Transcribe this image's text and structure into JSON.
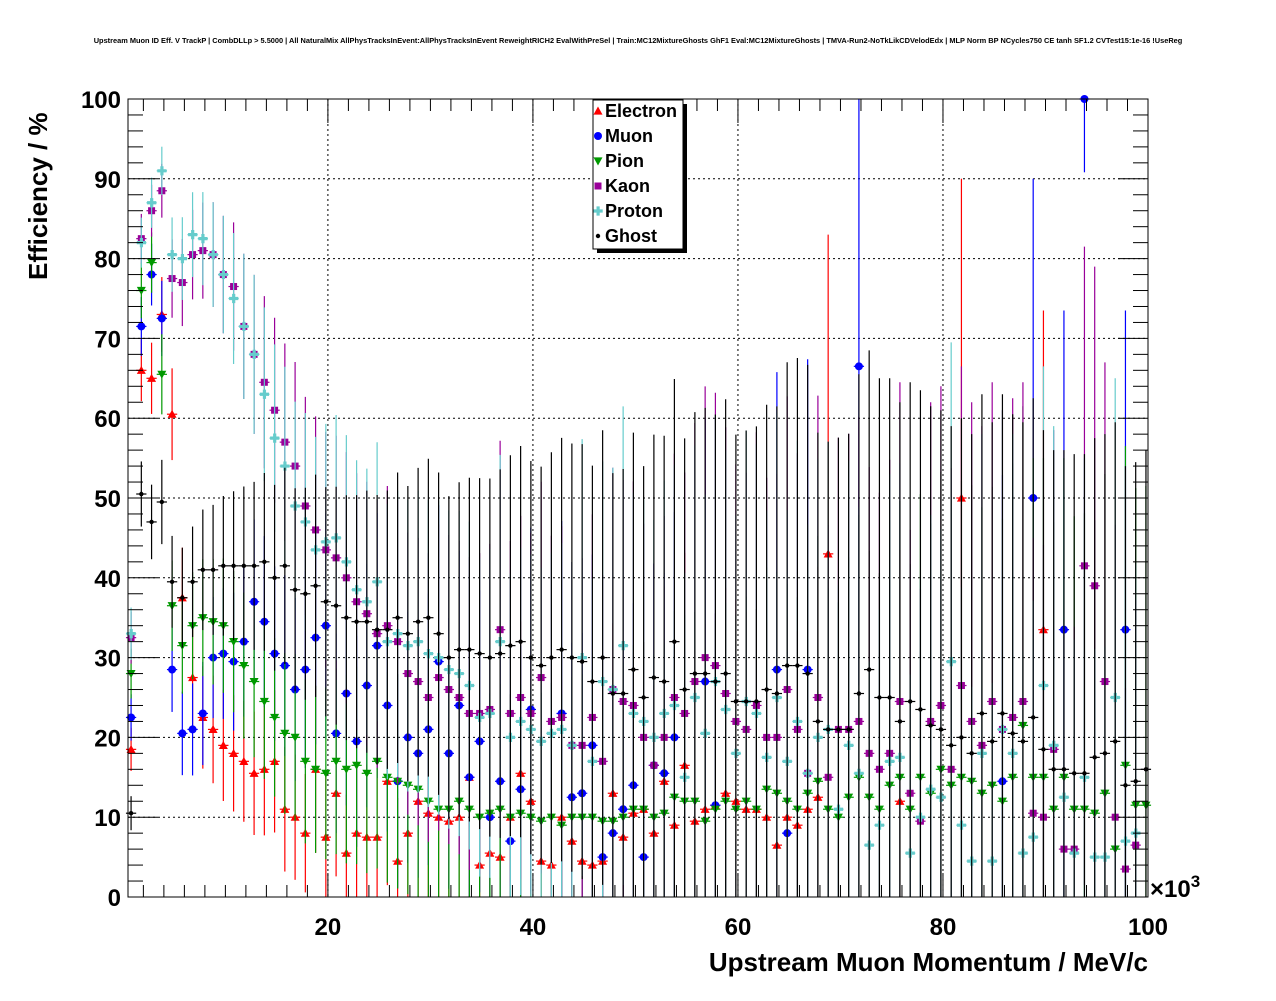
{
  "chart_data": {
    "type": "scatter",
    "title": "Upstream Muon ID Eff. V TrackP | CombDLLp > 5.5000 | All NaturalMix AllPhysTracksInEvent:AllPhysTracksInEvent ReweightRICH2 EvalWithPreSel | Train:MC12MixtureGhosts GhF1 Eval:MC12MixtureGhosts | TMVA-Run2-NoTkLikCDVelodEdx | MLP Norm BP NCycles750 CE tanh SF1.2 CVTest15:1e-16 !UseReg",
    "xlabel": "Upstream Muon Momentum / MeV/c",
    "ylabel": "Efficiency / %",
    "x_multiplier": "×10",
    "x_multiplier_exp": "3",
    "xlim": [
      0.5,
      100
    ],
    "ylim": [
      0,
      100
    ],
    "xticks": [
      "20",
      "40",
      "60",
      "80",
      "100"
    ],
    "yticks": [
      "0",
      "10",
      "20",
      "30",
      "40",
      "50",
      "60",
      "70",
      "80",
      "90",
      "100"
    ],
    "grid": true,
    "legend_position": "top-center",
    "x0": 0.8,
    "series": [
      {
        "name": "Electron",
        "color": "#ff0000",
        "marker": "triangle-up",
        "values": [
          18.5,
          66,
          65,
          73,
          60.5,
          37.5,
          27.5,
          22.5,
          21,
          19,
          18,
          17,
          15.5,
          16,
          17,
          11,
          10,
          8,
          16,
          7.5,
          13,
          5.5,
          8,
          7.5,
          7.5,
          14.5,
          4.5,
          8,
          12,
          10.5,
          10,
          9.5,
          10,
          15,
          4,
          5.5,
          5,
          10,
          15.5,
          12,
          4.5,
          4,
          10,
          7,
          4.5,
          4,
          4.5,
          13,
          7.5,
          10.5,
          11,
          8,
          14.5,
          9,
          16.5,
          9.5,
          11,
          11.5,
          13,
          12,
          11,
          11,
          10,
          6.5,
          10,
          9,
          11,
          12.5,
          43,
          null,
          null,
          null,
          null,
          null,
          null,
          12,
          null,
          null,
          null,
          null,
          null,
          50,
          null,
          null,
          null,
          null,
          null,
          null,
          null,
          33.5,
          null,
          null,
          null,
          null,
          null,
          null,
          null,
          null,
          null,
          null
        ]
      },
      {
        "name": "Muon",
        "color": "#0000ff",
        "marker": "circle",
        "values": [
          22.5,
          71.5,
          78,
          72.5,
          28.5,
          20.5,
          21,
          23,
          30,
          30.5,
          29.5,
          32,
          37,
          34.5,
          30.5,
          29,
          26,
          28.5,
          32.5,
          34,
          20.5,
          25.5,
          19.5,
          26.5,
          31.5,
          24,
          14.5,
          20,
          18,
          21,
          29.5,
          18,
          24,
          15,
          19.5,
          10,
          14.5,
          7,
          13.5,
          23.5,
          null,
          null,
          23,
          12.5,
          13,
          19,
          5,
          8,
          11,
          14,
          5,
          16.5,
          15.5,
          20,
          null,
          null,
          27,
          11.5,
          null,
          null,
          null,
          null,
          null,
          28.5,
          8,
          null,
          28.5,
          null,
          null,
          null,
          null,
          66.5,
          null,
          null,
          null,
          null,
          null,
          null,
          null,
          null,
          null,
          null,
          null,
          null,
          null,
          14.5,
          null,
          null,
          50,
          null,
          null,
          33.5,
          null,
          100,
          null,
          null,
          null,
          33.5,
          null,
          null
        ]
      },
      {
        "name": "Pion",
        "color": "#009900",
        "marker": "triangle-down",
        "values": [
          28,
          76,
          79.5,
          65.5,
          36.5,
          31.5,
          34,
          35,
          34.5,
          34,
          32,
          29,
          27,
          24.5,
          22.5,
          20.5,
          20,
          17,
          16,
          15.5,
          17,
          16,
          16.5,
          15.5,
          17,
          15,
          14.5,
          14,
          13.5,
          12,
          11,
          11,
          12,
          11,
          10,
          10.5,
          11,
          10,
          10.5,
          10,
          9.5,
          10,
          9,
          10,
          10,
          10,
          9.5,
          9.5,
          10,
          11,
          11,
          10,
          10.5,
          12.5,
          12,
          12,
          9.5,
          11,
          12,
          11,
          12,
          11,
          13.5,
          13,
          12,
          11,
          13,
          14.5,
          11,
          10,
          12.5,
          15,
          12.5,
          11,
          14,
          15,
          11,
          15,
          13,
          16,
          14,
          15,
          14.5,
          13,
          14,
          12,
          15,
          21.5,
          15,
          15,
          11,
          15,
          11,
          11,
          10.5,
          13,
          6,
          16.5,
          11.5,
          11.5
        ]
      },
      {
        "name": "Kaon",
        "color": "#990099",
        "marker": "square",
        "values": [
          32.5,
          82.5,
          86,
          88.5,
          77.5,
          77,
          80.5,
          81,
          80.5,
          78,
          76.5,
          71.5,
          68,
          64.5,
          61,
          57,
          54,
          49,
          46,
          43.5,
          42.5,
          40,
          37,
          35.5,
          33,
          34,
          32,
          28,
          27,
          25,
          27.5,
          26,
          25,
          23,
          23,
          23.5,
          33.5,
          23,
          25,
          23,
          27.5,
          22,
          22.5,
          19,
          19,
          22.5,
          17,
          26,
          24.5,
          24,
          20,
          16.5,
          20,
          25,
          23,
          27,
          30,
          29,
          25.5,
          22,
          21,
          24,
          20,
          20,
          26,
          21,
          15.5,
          25,
          15,
          21,
          21,
          22,
          18,
          16,
          18,
          24.5,
          13,
          9.5,
          22,
          24,
          16,
          26.5,
          22,
          19,
          24.5,
          21,
          22.5,
          24.5,
          10.5,
          10,
          18.5,
          6,
          6,
          41.5,
          39,
          27,
          10,
          3.5,
          6.5,
          null
        ]
      },
      {
        "name": "Proton",
        "color": "#66cccc",
        "marker": "cross",
        "values": [
          33,
          82,
          87,
          91,
          80.5,
          80,
          83,
          82.5,
          80.5,
          78,
          75,
          71.5,
          68,
          63,
          57.5,
          54,
          49,
          47,
          43.5,
          44.5,
          45,
          42,
          38.5,
          37,
          39.5,
          32,
          33,
          31.5,
          32,
          30.5,
          30,
          28.5,
          28,
          26.5,
          22.5,
          23,
          32,
          20,
          22,
          21,
          19.5,
          20.5,
          21,
          19,
          30,
          17,
          27,
          26,
          31.5,
          23,
          22,
          20,
          23,
          24,
          15,
          25,
          20.5,
          27,
          23.5,
          18,
          24.5,
          23,
          17.5,
          25,
          17,
          22,
          15.5,
          20,
          21,
          11,
          19,
          15.5,
          6.5,
          9,
          17,
          17.5,
          5.5,
          10,
          13.5,
          12.5,
          29.5,
          9,
          4.5,
          18,
          4.5,
          21,
          18,
          5.5,
          7.5,
          26.5,
          19,
          12.5,
          5.5,
          15,
          5,
          5,
          25,
          7,
          8,
          null
        ]
      },
      {
        "name": "Ghost",
        "color": "#000000",
        "marker": "dot",
        "values": [
          10.5,
          50.5,
          47,
          49.5,
          39.5,
          37.5,
          39.5,
          41,
          41,
          41.5,
          41.5,
          41.5,
          41.5,
          42,
          40,
          41.5,
          38.5,
          38,
          39,
          37,
          36.5,
          35,
          34.5,
          34.5,
          33.5,
          33.5,
          35,
          33,
          34.5,
          35,
          33,
          30,
          31,
          31,
          30.5,
          30,
          30.5,
          31.5,
          32,
          30,
          29,
          30,
          31,
          30,
          29.5,
          27,
          30,
          25.5,
          25.5,
          28.5,
          25,
          27.5,
          27,
          32,
          26,
          28,
          28,
          27,
          28,
          24.5,
          24.5,
          24.5,
          26,
          25.5,
          29,
          29,
          28,
          22,
          21,
          21,
          21,
          25.5,
          28.5,
          25,
          25,
          22,
          24.5,
          23.5,
          21.5,
          21,
          19,
          20,
          18,
          23,
          19.5,
          23,
          20.5,
          19.5,
          22.5,
          18.5,
          16,
          16,
          15.5,
          15.5,
          17.5,
          18,
          19.5,
          14,
          14.5,
          16
        ]
      }
    ]
  }
}
